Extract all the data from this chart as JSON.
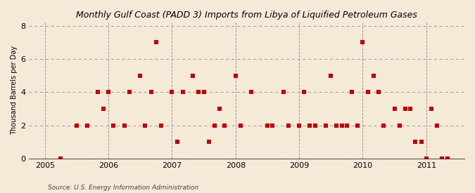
{
  "title": "Monthly Gulf Coast (PADD 3) Imports from Libya of Liquified Petroleum Gases",
  "ylabel": "Thousand Barrels per Day",
  "source": "Source: U.S. Energy Information Administration",
  "background_color": "#f5ead8",
  "plot_background_color": "#f5ead8",
  "marker_color": "#cc0000",
  "marker_size": 16,
  "xlim": [
    2004.75,
    2011.6
  ],
  "ylim": [
    0,
    8.2
  ],
  "yticks": [
    0,
    2,
    4,
    6,
    8
  ],
  "xticks": [
    2005,
    2006,
    2007,
    2008,
    2009,
    2010,
    2011
  ],
  "data_x": [
    2005.25,
    2005.5,
    2005.67,
    2005.83,
    2005.92,
    2006.0,
    2006.08,
    2006.25,
    2006.33,
    2006.5,
    2006.58,
    2006.67,
    2006.75,
    2006.83,
    2007.0,
    2007.08,
    2007.17,
    2007.33,
    2007.42,
    2007.5,
    2007.58,
    2007.67,
    2007.75,
    2007.83,
    2008.0,
    2008.08,
    2008.25,
    2008.5,
    2008.58,
    2008.75,
    2008.83,
    2009.0,
    2009.08,
    2009.17,
    2009.25,
    2009.42,
    2009.5,
    2009.58,
    2009.67,
    2009.75,
    2009.83,
    2009.92,
    2010.0,
    2010.08,
    2010.17,
    2010.25,
    2010.33,
    2010.5,
    2010.58,
    2010.67,
    2010.75,
    2010.83,
    2010.92,
    2011.0,
    2011.08,
    2011.17,
    2011.25,
    2011.33
  ],
  "data_y": [
    0,
    2,
    2,
    4,
    3,
    4,
    2,
    2,
    4,
    5,
    2,
    4,
    7,
    2,
    4,
    1,
    4,
    5,
    4,
    4,
    1,
    2,
    3,
    2,
    5,
    2,
    4,
    2,
    2,
    4,
    2,
    2,
    4,
    2,
    2,
    2,
    5,
    2,
    2,
    2,
    4,
    2,
    7,
    4,
    5,
    4,
    2,
    3,
    2,
    3,
    3,
    1,
    1,
    0,
    3,
    2,
    0,
    0
  ]
}
